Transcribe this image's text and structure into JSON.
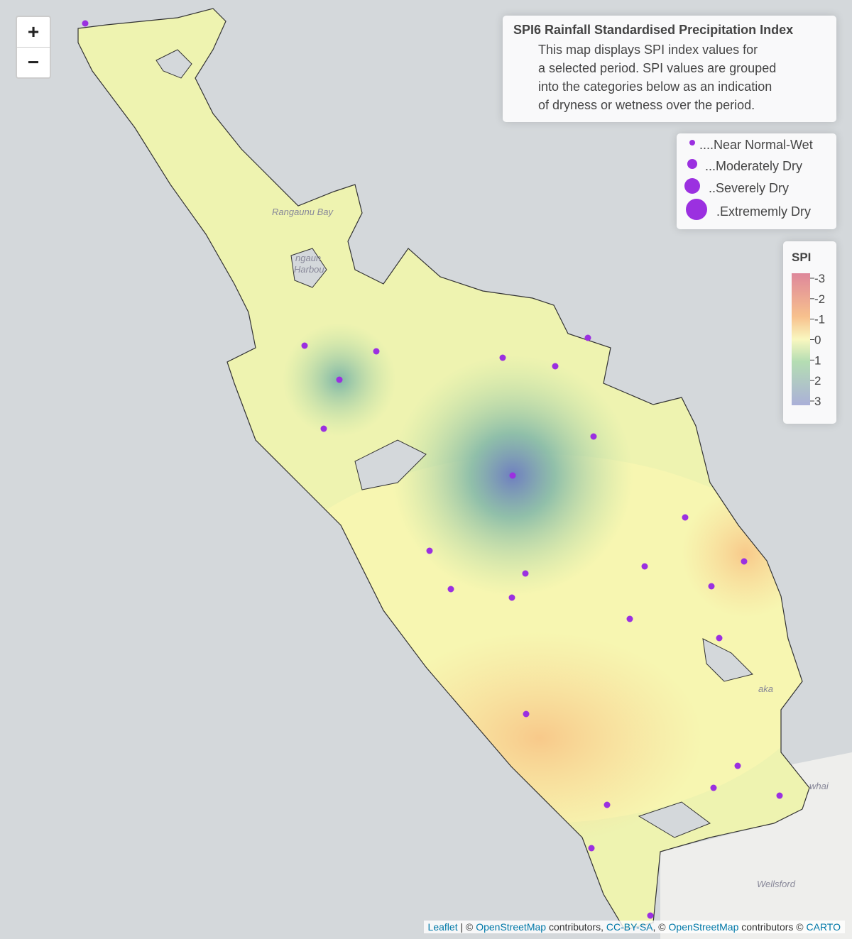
{
  "zoom_controls": {
    "zoom_in": "+",
    "zoom_out": "−"
  },
  "info_box": {
    "title": "SPI6 Rainfall Standardised Precipitation Index",
    "lines": [
      "This map displays SPI index values for",
      "a selected period. SPI values are grouped",
      "into the categories below as an indication",
      "of dryness or wetness over the period."
    ]
  },
  "marker_legend": {
    "entries": [
      "....Near Normal-Wet",
      "...Moderately Dry",
      "..Severely Dry",
      ".Extrememly Dry"
    ]
  },
  "spi_legend": {
    "title": "SPI",
    "ticks": [
      -3,
      -2,
      -1,
      0,
      1,
      2,
      3
    ]
  },
  "place_labels": [
    "Rangaunu Bay",
    "ngaun",
    "Harbou",
    "aka",
    "whai",
    "Wellsford"
  ],
  "attribution": {
    "leaflet": "Leaflet",
    "sep1": "| ©",
    "osm1": "OpenStreetMap",
    "text1": "contributors,",
    "license": "CC-BY-SA",
    "sep2": ", ©",
    "osm2": "OpenStreetMap",
    "text2": "contributors ©",
    "carto": "CARTO"
  }
}
